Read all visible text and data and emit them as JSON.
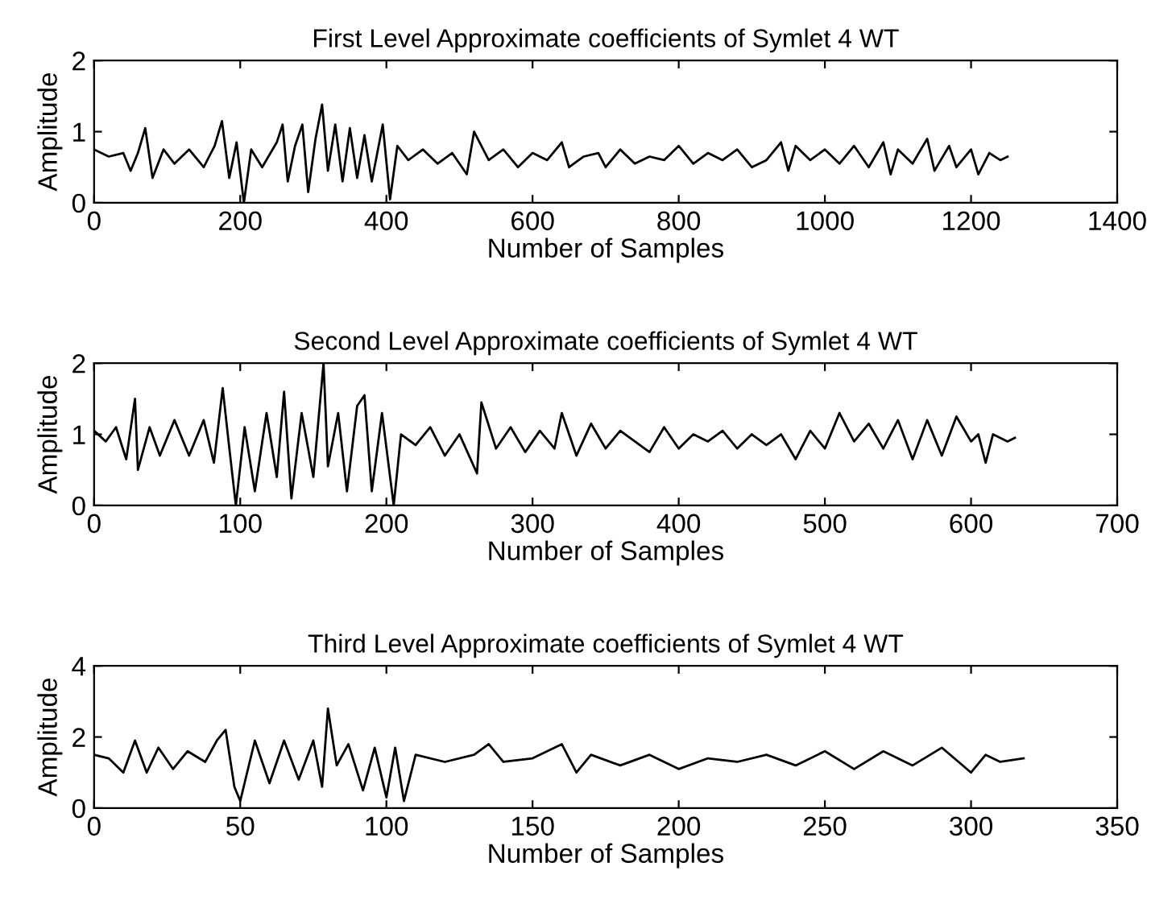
{
  "chart_data": [
    {
      "type": "line",
      "title": "First Level Approximate coefficients of Symlet 4 WT",
      "xlabel": "Number of Samples",
      "ylabel": "Amplitude",
      "xlim": [
        0,
        1400
      ],
      "ylim": [
        0,
        2
      ],
      "xticks": [
        0,
        200,
        400,
        600,
        800,
        1000,
        1200,
        1400
      ],
      "yticks": [
        0,
        1,
        2
      ],
      "grid": false,
      "legend": false,
      "series": [
        {
          "color": "#000000",
          "x": [
            0,
            20,
            40,
            50,
            60,
            70,
            80,
            95,
            110,
            130,
            150,
            165,
            175,
            185,
            195,
            205,
            215,
            230,
            250,
            258,
            265,
            275,
            285,
            293,
            303,
            312,
            320,
            330,
            340,
            350,
            360,
            370,
            380,
            395,
            405,
            415,
            430,
            450,
            470,
            490,
            510,
            520,
            540,
            560,
            580,
            600,
            620,
            640,
            650,
            670,
            690,
            700,
            720,
            740,
            760,
            780,
            800,
            820,
            840,
            860,
            880,
            900,
            920,
            940,
            950,
            960,
            980,
            1000,
            1020,
            1040,
            1060,
            1080,
            1090,
            1100,
            1120,
            1140,
            1150,
            1170,
            1180,
            1200,
            1210,
            1225,
            1240,
            1250
          ],
          "values": [
            0.75,
            0.65,
            0.7,
            0.45,
            0.7,
            1.05,
            0.35,
            0.75,
            0.55,
            0.75,
            0.5,
            0.8,
            1.15,
            0.35,
            0.85,
            0.0,
            0.75,
            0.5,
            0.85,
            1.1,
            0.3,
            0.8,
            1.1,
            0.15,
            0.9,
            1.38,
            0.45,
            1.1,
            0.3,
            1.05,
            0.35,
            0.95,
            0.3,
            1.1,
            0.05,
            0.8,
            0.6,
            0.75,
            0.55,
            0.7,
            0.4,
            1.0,
            0.6,
            0.75,
            0.5,
            0.7,
            0.6,
            0.85,
            0.5,
            0.65,
            0.7,
            0.5,
            0.75,
            0.55,
            0.65,
            0.6,
            0.8,
            0.55,
            0.7,
            0.6,
            0.75,
            0.5,
            0.6,
            0.85,
            0.45,
            0.8,
            0.6,
            0.75,
            0.55,
            0.8,
            0.5,
            0.85,
            0.4,
            0.75,
            0.55,
            0.9,
            0.45,
            0.8,
            0.5,
            0.75,
            0.4,
            0.7,
            0.6,
            0.65
          ]
        }
      ]
    },
    {
      "type": "line",
      "title": "Second Level Approximate coefficients of Symlet 4 WT",
      "xlabel": "Number of Samples",
      "ylabel": "Amplitude",
      "xlim": [
        0,
        700
      ],
      "ylim": [
        0,
        2
      ],
      "xticks": [
        0,
        100,
        200,
        300,
        400,
        500,
        600,
        700
      ],
      "yticks": [
        0,
        1,
        2
      ],
      "grid": false,
      "legend": false,
      "series": [
        {
          "color": "#000000",
          "x": [
            0,
            8,
            15,
            22,
            28,
            30,
            38,
            45,
            55,
            65,
            75,
            82,
            88,
            92,
            97,
            103,
            110,
            118,
            125,
            130,
            135,
            142,
            150,
            157,
            160,
            167,
            173,
            180,
            185,
            190,
            197,
            205,
            210,
            220,
            230,
            240,
            250,
            262,
            265,
            275,
            285,
            295,
            305,
            315,
            320,
            330,
            340,
            350,
            360,
            370,
            380,
            390,
            400,
            410,
            420,
            430,
            440,
            450,
            460,
            470,
            480,
            490,
            500,
            510,
            520,
            530,
            540,
            550,
            560,
            570,
            580,
            590,
            600,
            605,
            610,
            615,
            625,
            630
          ],
          "values": [
            1.05,
            0.9,
            1.1,
            0.65,
            1.5,
            0.5,
            1.1,
            0.7,
            1.2,
            0.7,
            1.2,
            0.6,
            1.65,
            0.9,
            0.0,
            1.1,
            0.2,
            1.3,
            0.4,
            1.6,
            0.1,
            1.3,
            0.4,
            2.0,
            0.55,
            1.3,
            0.2,
            1.4,
            1.55,
            0.2,
            1.3,
            0.0,
            1.0,
            0.85,
            1.1,
            0.7,
            1.0,
            0.45,
            1.45,
            0.8,
            1.1,
            0.75,
            1.05,
            0.8,
            1.3,
            0.7,
            1.15,
            0.8,
            1.05,
            0.9,
            0.75,
            1.1,
            0.8,
            1.0,
            0.9,
            1.05,
            0.8,
            1.0,
            0.85,
            1.0,
            0.65,
            1.05,
            0.8,
            1.3,
            0.9,
            1.15,
            0.8,
            1.2,
            0.65,
            1.2,
            0.7,
            1.25,
            0.9,
            1.0,
            0.6,
            1.0,
            0.9,
            0.95
          ]
        }
      ]
    },
    {
      "type": "line",
      "title": "Third Level Approximate coefficients of Symlet 4 WT",
      "xlabel": "Number of Samples",
      "ylabel": "Amplitude",
      "xlim": [
        0,
        350
      ],
      "ylim": [
        0,
        4
      ],
      "xticks": [
        0,
        50,
        100,
        150,
        200,
        250,
        300,
        350
      ],
      "yticks": [
        0,
        2,
        4
      ],
      "grid": false,
      "legend": false,
      "series": [
        {
          "color": "#000000",
          "x": [
            0,
            5,
            10,
            14,
            18,
            22,
            27,
            32,
            38,
            42,
            45,
            48,
            50,
            55,
            60,
            65,
            70,
            75,
            78,
            80,
            83,
            87,
            92,
            96,
            100,
            103,
            106,
            110,
            120,
            130,
            135,
            140,
            150,
            160,
            165,
            170,
            180,
            190,
            200,
            210,
            220,
            230,
            240,
            250,
            260,
            270,
            280,
            290,
            300,
            305,
            310,
            318
          ],
          "values": [
            1.5,
            1.4,
            1.0,
            1.9,
            1.0,
            1.7,
            1.1,
            1.6,
            1.3,
            1.9,
            2.2,
            0.6,
            0.2,
            1.9,
            0.7,
            1.9,
            0.8,
            1.9,
            0.6,
            2.8,
            1.2,
            1.8,
            0.5,
            1.7,
            0.3,
            1.7,
            0.2,
            1.5,
            1.3,
            1.5,
            1.8,
            1.3,
            1.4,
            1.8,
            1.0,
            1.5,
            1.2,
            1.5,
            1.1,
            1.4,
            1.3,
            1.5,
            1.2,
            1.6,
            1.1,
            1.6,
            1.2,
            1.7,
            1.0,
            1.5,
            1.3,
            1.4
          ]
        }
      ]
    }
  ]
}
